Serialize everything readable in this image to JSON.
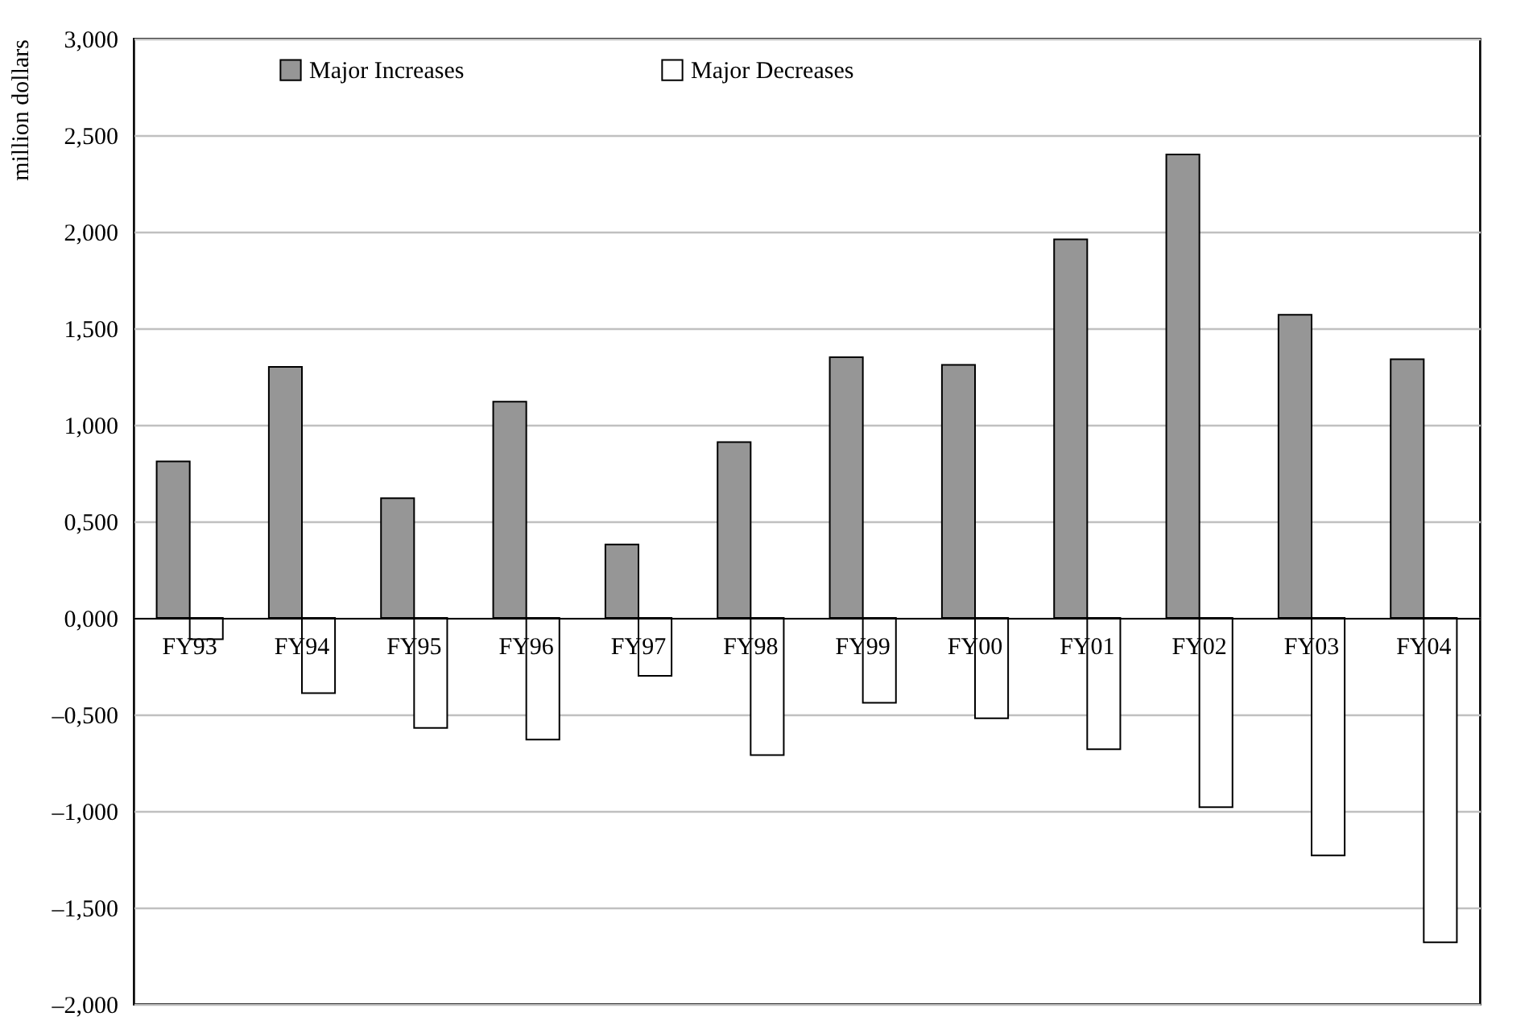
{
  "chart_data": {
    "type": "bar",
    "ylabel": "million dollars",
    "categories": [
      "FY93",
      "FY94",
      "FY95",
      "FY96",
      "FY97",
      "FY98",
      "FY99",
      "FY00",
      "FY01",
      "FY02",
      "FY03",
      "FY04"
    ],
    "series": [
      {
        "name": "Major Increases",
        "color": "#969696",
        "values": [
          0.81,
          1.3,
          0.62,
          1.12,
          0.38,
          0.91,
          1.35,
          1.31,
          1.96,
          2.4,
          1.57,
          1.34
        ]
      },
      {
        "name": "Major Decreases",
        "color": "#ffffff",
        "values": [
          -0.11,
          -0.39,
          -0.57,
          -0.63,
          -0.3,
          -0.71,
          -0.44,
          -0.52,
          -0.68,
          -0.98,
          -1.23,
          -1.68
        ]
      }
    ],
    "ylim": [
      -2,
      3
    ],
    "yticks": [
      {
        "value": -2,
        "label": "–2,000"
      },
      {
        "value": -1.5,
        "label": "–1,500"
      },
      {
        "value": -1,
        "label": "–1,000"
      },
      {
        "value": -0.5,
        "label": "–0,500"
      },
      {
        "value": 0,
        "label": "0,000"
      },
      {
        "value": 0.5,
        "label": "0,500"
      },
      {
        "value": 1,
        "label": "1,000"
      },
      {
        "value": 1.5,
        "label": "1,500"
      },
      {
        "value": 2,
        "label": "2,000"
      },
      {
        "value": 2.5,
        "label": "2,500"
      },
      {
        "value": 3,
        "label": "3,000"
      }
    ],
    "grid": "y",
    "legend": "top left"
  }
}
